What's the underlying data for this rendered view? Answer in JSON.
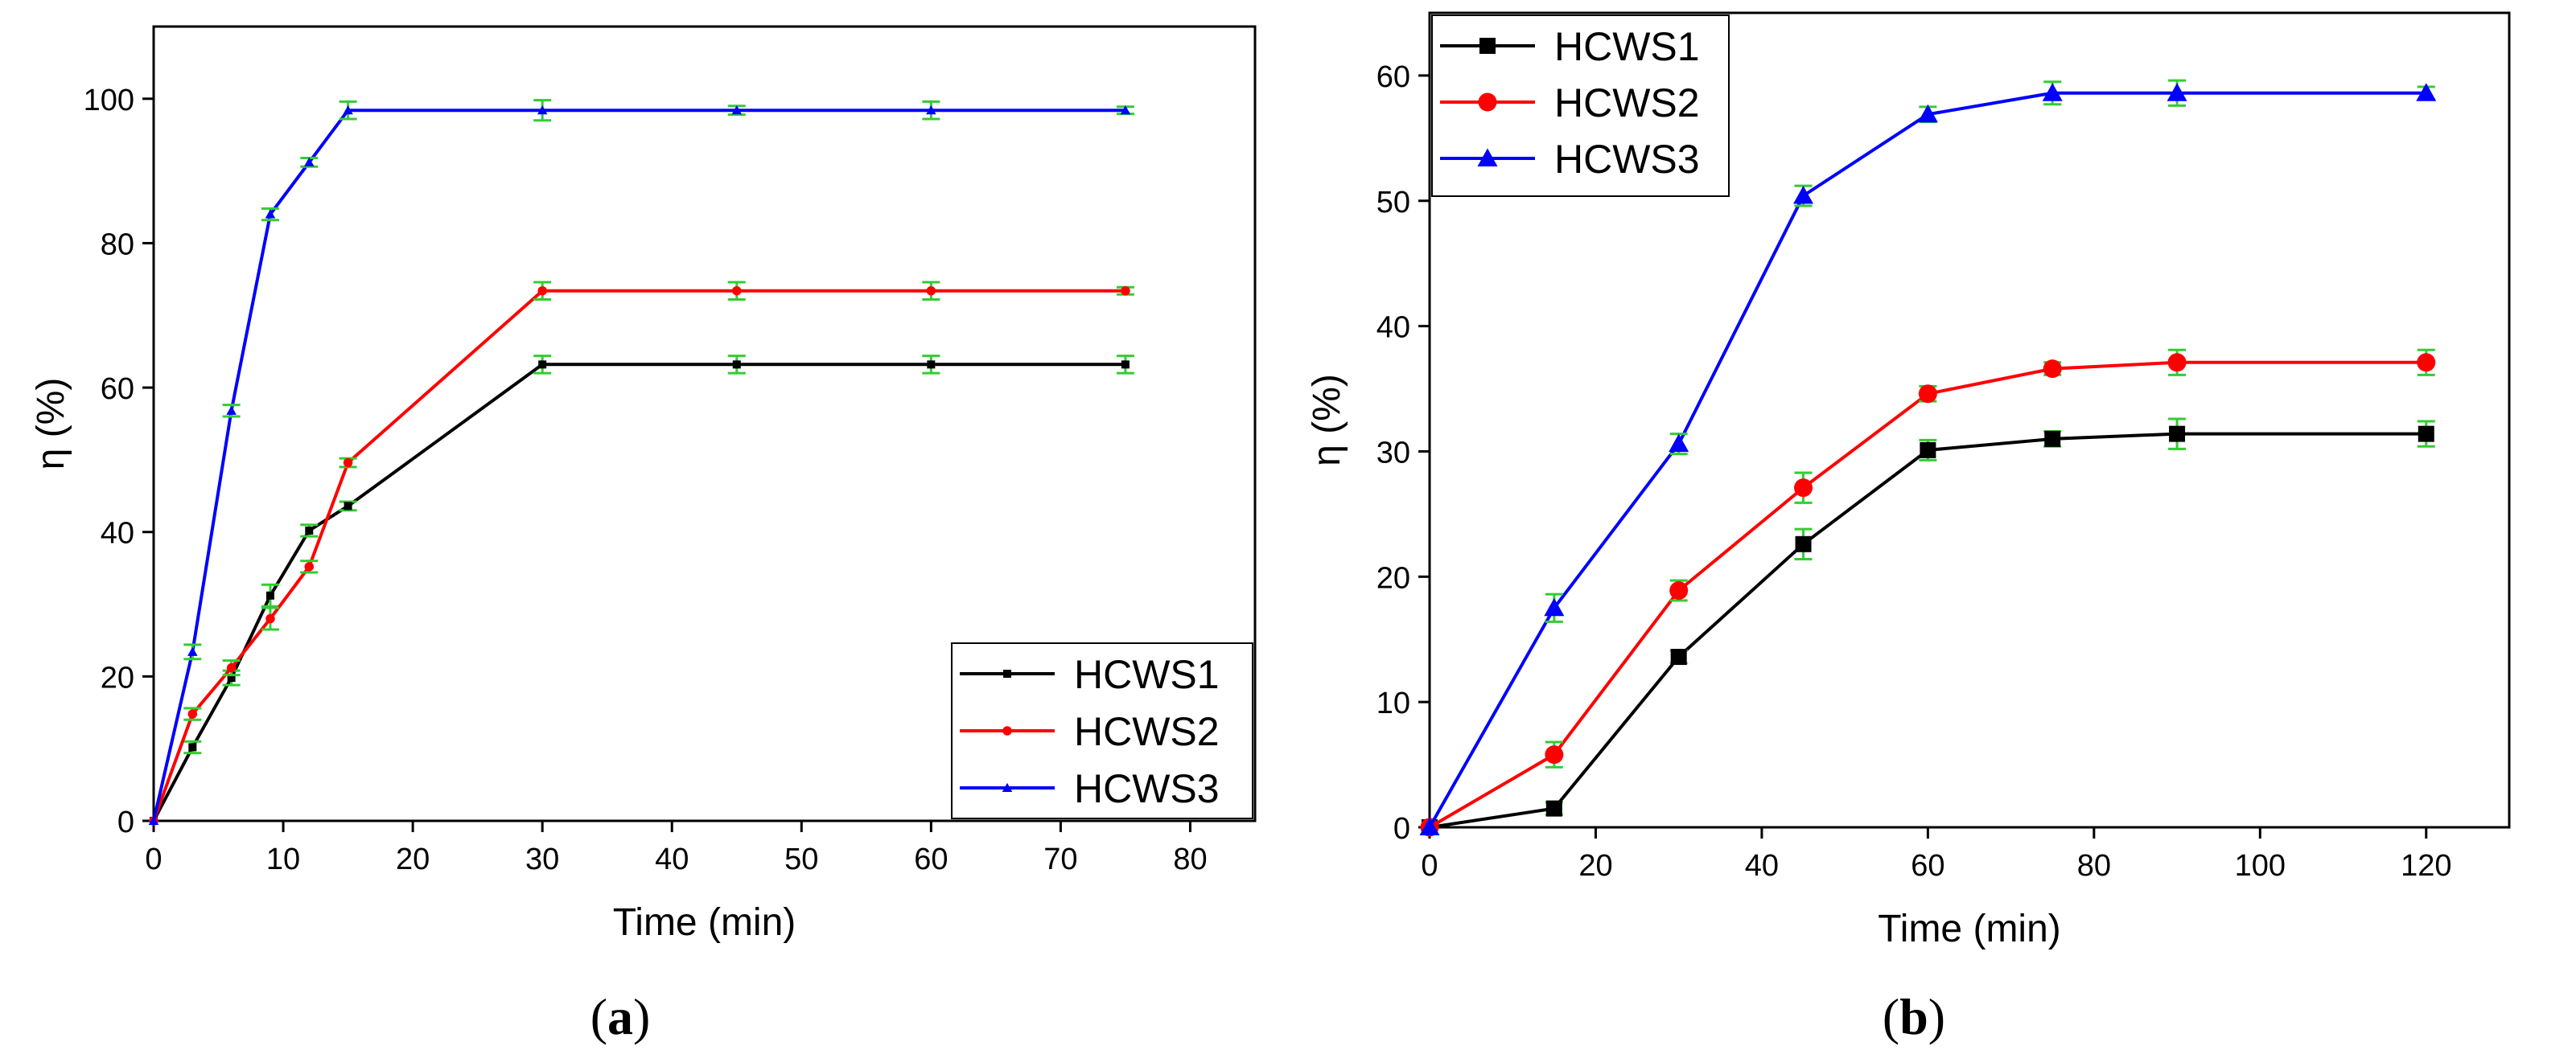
{
  "chart_data": [
    {
      "panel_label": "a",
      "type": "line",
      "xlabel": "Time (min)",
      "ylabel": "η (%)",
      "xlim": [
        0,
        85
      ],
      "ylim": [
        0,
        110
      ],
      "xticks": [
        0,
        10,
        20,
        30,
        40,
        50,
        60,
        70,
        80
      ],
      "yticks": [
        0,
        20,
        40,
        60,
        80,
        100
      ],
      "legend_position": "bottom-right",
      "series": [
        {
          "name": "HCWS1",
          "color": "#000000",
          "marker": "square",
          "x": [
            0,
            3,
            6,
            9,
            12,
            15,
            30,
            45,
            60,
            75
          ],
          "y": [
            0,
            10.2,
            19.8,
            31.2,
            40.2,
            43.6,
            63.2,
            63.2,
            63.2,
            63.2
          ],
          "err": [
            0,
            0.8,
            1.0,
            1.5,
            0.8,
            0.6,
            1.2,
            1.2,
            1.2,
            1.2
          ]
        },
        {
          "name": "HCWS2",
          "color": "#ff0000",
          "marker": "circle",
          "x": [
            0,
            3,
            6,
            9,
            12,
            15,
            30,
            45,
            60,
            75
          ],
          "y": [
            0,
            14.8,
            21.2,
            28.0,
            35.2,
            49.6,
            73.4,
            73.4,
            73.4,
            73.4
          ],
          "err": [
            0,
            0.8,
            1.0,
            1.5,
            0.8,
            0.6,
            1.2,
            1.2,
            1.2,
            0.5
          ]
        },
        {
          "name": "HCWS3",
          "color": "#0000ff",
          "marker": "triangle",
          "x": [
            0,
            3,
            6,
            9,
            12,
            15,
            30,
            45,
            60,
            75
          ],
          "y": [
            0,
            23.4,
            56.8,
            84.0,
            91.2,
            98.4,
            98.4,
            98.4,
            98.4,
            98.4
          ],
          "err": [
            0,
            1.0,
            0.8,
            0.8,
            0.6,
            1.2,
            1.4,
            0.6,
            1.2,
            0.5
          ]
        }
      ]
    },
    {
      "panel_label": "b",
      "type": "line",
      "xlabel": "Time (min)",
      "ylabel": "η (%)",
      "xlim": [
        0,
        130
      ],
      "ylim": [
        0,
        65
      ],
      "xticks": [
        0,
        20,
        40,
        60,
        80,
        100,
        120
      ],
      "yticks": [
        0,
        10,
        20,
        30,
        40,
        50,
        60
      ],
      "legend_position": "top-left",
      "series": [
        {
          "name": "HCWS1",
          "color": "#000000",
          "marker": "square",
          "x": [
            0,
            15,
            30,
            45,
            60,
            75,
            90,
            120
          ],
          "y": [
            0,
            1.5,
            13.6,
            22.6,
            30.1,
            31.0,
            31.4,
            31.4
          ],
          "err": [
            0,
            0.5,
            0.5,
            1.2,
            0.8,
            0.6,
            1.2,
            1.0
          ]
        },
        {
          "name": "HCWS2",
          "color": "#ff0000",
          "marker": "circle",
          "x": [
            0,
            15,
            30,
            45,
            60,
            75,
            90,
            120
          ],
          "y": [
            0,
            5.8,
            18.9,
            27.1,
            34.6,
            36.6,
            37.1,
            37.1
          ],
          "err": [
            0,
            1.0,
            0.8,
            1.2,
            0.6,
            0.5,
            1.0,
            1.0
          ]
        },
        {
          "name": "HCWS3",
          "color": "#0000ff",
          "marker": "triangle",
          "x": [
            0,
            15,
            30,
            45,
            60,
            75,
            90,
            120
          ],
          "y": [
            0,
            17.5,
            30.6,
            50.4,
            56.9,
            58.6,
            58.6,
            58.6
          ],
          "err": [
            0,
            1.1,
            0.8,
            0.8,
            0.6,
            0.9,
            1.0,
            0.5
          ]
        }
      ]
    }
  ],
  "captions": {
    "a": "a",
    "b": "b"
  },
  "colors": {
    "errorbar": "#33cc33",
    "axis": "#000000"
  }
}
